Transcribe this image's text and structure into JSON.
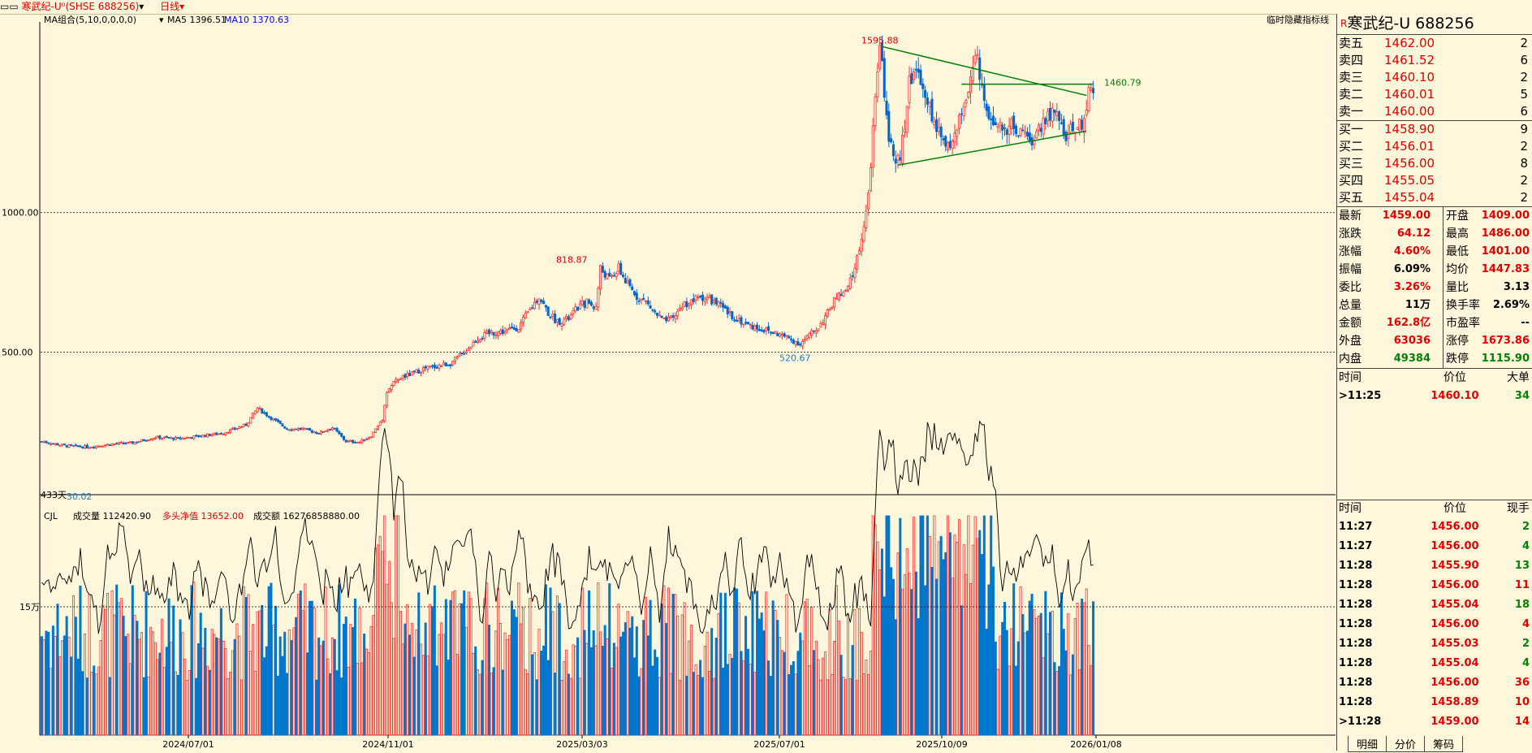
{
  "titlebar": {
    "stock": "寒武纪-U⁰(SHSE 688256)",
    "period": "日线"
  },
  "indicator_line": {
    "ma_group": "MA组合(5,10,0,0,0,0)",
    "ma5": "MA5 1396.51",
    "ma10": "MA10 1370.63"
  },
  "hide_indicator": "临时隐藏指标线",
  "price_axis": [
    "1000.00",
    "500.00"
  ],
  "annotations": {
    "high": "1595.88",
    "mid_high": "818.87",
    "mid_low": "520.67",
    "start_low": "30.02",
    "days": "433天",
    "resistance": "1460.79"
  },
  "volume_panel": {
    "name": "CJL",
    "vol": "成交量 112420.90",
    "net": "多头净值 13652.00",
    "amount": "成交额 16276858880.00",
    "axis": "15万"
  },
  "dates": [
    "2024/07/01",
    "2024/11/01",
    "2025/03/03",
    "2025/07/01",
    "2025/10/09",
    "2026/01/08"
  ],
  "side": {
    "tag": "R",
    "name": "寒武纪-U  688256",
    "asks": [
      {
        "label": "卖五",
        "price": "1462.00",
        "vol": "2"
      },
      {
        "label": "卖四",
        "price": "1461.52",
        "vol": "6"
      },
      {
        "label": "卖三",
        "price": "1460.10",
        "vol": "2"
      },
      {
        "label": "卖二",
        "price": "1460.01",
        "vol": "5"
      },
      {
        "label": "卖一",
        "price": "1460.00",
        "vol": "6"
      }
    ],
    "bids": [
      {
        "label": "买一",
        "price": "1458.90",
        "vol": "9"
      },
      {
        "label": "买二",
        "price": "1456.01",
        "vol": "2"
      },
      {
        "label": "买三",
        "price": "1456.00",
        "vol": "8"
      },
      {
        "label": "买四",
        "price": "1455.05",
        "vol": "2"
      },
      {
        "label": "买五",
        "price": "1455.04",
        "vol": "2"
      }
    ],
    "stats": [
      {
        "k1": "最新",
        "v1": "1459.00",
        "c1": "red",
        "k2": "开盘",
        "v2": "1409.00",
        "c2": "red"
      },
      {
        "k1": "涨跌",
        "v1": "64.12",
        "c1": "red",
        "k2": "最高",
        "v2": "1486.00",
        "c2": "red"
      },
      {
        "k1": "涨幅",
        "v1": "4.60%",
        "c1": "red",
        "k2": "最低",
        "v2": "1401.00",
        "c2": "red"
      },
      {
        "k1": "振幅",
        "v1": "6.09%",
        "c1": "blk",
        "k2": "均价",
        "v2": "1447.83",
        "c2": "red"
      },
      {
        "k1": "委比",
        "v1": "3.26%",
        "c1": "red",
        "k2": "量比",
        "v2": "3.13",
        "c2": "blk"
      },
      {
        "k1": "总量",
        "v1": "11万",
        "c1": "blk",
        "k2": "换手率",
        "v2": "2.69%",
        "c2": "blk"
      },
      {
        "k1": "金额",
        "v1": "162.8亿",
        "c1": "red",
        "k2": "市盈率",
        "v2": "--",
        "c2": "blk"
      },
      {
        "k1": "外盘",
        "v1": "63036",
        "c1": "red",
        "k2": "涨停",
        "v2": "1673.86",
        "c2": "red"
      },
      {
        "k1": "内盘",
        "v1": "49384",
        "c1": "green",
        "k2": "跌停",
        "v2": "1115.90",
        "c2": "green"
      }
    ],
    "big_head": {
      "t": "时间",
      "p": "价位",
      "v": "大单"
    },
    "big_rows": [
      {
        "t": ">11:25",
        "p": "1460.10",
        "v": "34",
        "vc": "green"
      }
    ],
    "tick_head": {
      "t": "时间",
      "p": "价位",
      "v": "现手"
    },
    "ticks": [
      {
        "t": "11:27",
        "p": "1456.00",
        "v": "2",
        "vc": "green"
      },
      {
        "t": "11:27",
        "p": "1456.00",
        "v": "4",
        "vc": "green"
      },
      {
        "t": "11:28",
        "p": "1455.90",
        "v": "13",
        "vc": "green"
      },
      {
        "t": "11:28",
        "p": "1456.00",
        "v": "11",
        "vc": "red"
      },
      {
        "t": "11:28",
        "p": "1455.04",
        "v": "18",
        "vc": "green"
      },
      {
        "t": "11:28",
        "p": "1456.00",
        "v": "4",
        "vc": "red"
      },
      {
        "t": "11:28",
        "p": "1455.03",
        "v": "2",
        "vc": "green"
      },
      {
        "t": "11:28",
        "p": "1455.04",
        "v": "4",
        "vc": "green"
      },
      {
        "t": "11:28",
        "p": "1456.00",
        "v": "36",
        "vc": "red"
      },
      {
        "t": "11:28",
        "p": "1458.89",
        "v": "10",
        "vc": "red"
      },
      {
        ">t": "",
        "t": ">11:28",
        "p": "1459.00",
        "v": "14",
        "vc": "red"
      }
    ],
    "tabs": [
      "明细",
      "分价",
      "筹码"
    ]
  },
  "chart_data": {
    "type": "candlestick",
    "anchors": [
      [
        0,
        180
      ],
      [
        10,
        165
      ],
      [
        20,
        160
      ],
      [
        30,
        170
      ],
      [
        40,
        175
      ],
      [
        50,
        195
      ],
      [
        60,
        190
      ],
      [
        70,
        200
      ],
      [
        80,
        210
      ],
      [
        90,
        240
      ],
      [
        95,
        300
      ],
      [
        100,
        270
      ],
      [
        108,
        225
      ],
      [
        115,
        225
      ],
      [
        122,
        210
      ],
      [
        128,
        230
      ],
      [
        134,
        180
      ],
      [
        140,
        178
      ],
      [
        145,
        200
      ],
      [
        150,
        260
      ],
      [
        152,
        360
      ],
      [
        156,
        400
      ],
      [
        162,
        420
      ],
      [
        168,
        440
      ],
      [
        174,
        450
      ],
      [
        180,
        460
      ],
      [
        186,
        500
      ],
      [
        192,
        550
      ],
      [
        198,
        570
      ],
      [
        204,
        575
      ],
      [
        210,
        590
      ],
      [
        214,
        640
      ],
      [
        219,
        700
      ],
      [
        223,
        640
      ],
      [
        227,
        610
      ],
      [
        232,
        620
      ],
      [
        236,
        660
      ],
      [
        240,
        680
      ],
      [
        244,
        660
      ],
      [
        246,
        800
      ],
      [
        250,
        760
      ],
      [
        254,
        800
      ],
      [
        258,
        740
      ],
      [
        262,
        700
      ],
      [
        266,
        680
      ],
      [
        270,
        640
      ],
      [
        274,
        610
      ],
      [
        278,
        620
      ],
      [
        282,
        670
      ],
      [
        286,
        680
      ],
      [
        290,
        700
      ],
      [
        294,
        690
      ],
      [
        298,
        670
      ],
      [
        302,
        640
      ],
      [
        306,
        620
      ],
      [
        310,
        600
      ],
      [
        314,
        590
      ],
      [
        318,
        580
      ],
      [
        322,
        570
      ],
      [
        326,
        560
      ],
      [
        330,
        545
      ],
      [
        334,
        530
      ],
      [
        338,
        560
      ],
      [
        342,
        590
      ],
      [
        346,
        640
      ],
      [
        350,
        700
      ],
      [
        354,
        710
      ],
      [
        358,
        800
      ],
      [
        362,
        950
      ],
      [
        364,
        1050
      ],
      [
        366,
        1300
      ],
      [
        369,
        1595
      ],
      [
        373,
        1280
      ],
      [
        376,
        1200
      ],
      [
        378,
        1180
      ],
      [
        382,
        1470
      ],
      [
        386,
        1520
      ],
      [
        390,
        1400
      ],
      [
        394,
        1300
      ],
      [
        398,
        1230
      ],
      [
        402,
        1280
      ],
      [
        406,
        1380
      ],
      [
        409,
        1480
      ],
      [
        412,
        1560
      ],
      [
        415,
        1400
      ],
      [
        419,
        1320
      ],
      [
        423,
        1290
      ],
      [
        427,
        1320
      ],
      [
        431,
        1280
      ],
      [
        435,
        1250
      ],
      [
        439,
        1300
      ],
      [
        443,
        1360
      ],
      [
        447,
        1340
      ],
      [
        451,
        1280
      ],
      [
        455,
        1300
      ],
      [
        459,
        1330
      ],
      [
        461,
        1420
      ],
      [
        463,
        1459
      ]
    ]
  }
}
